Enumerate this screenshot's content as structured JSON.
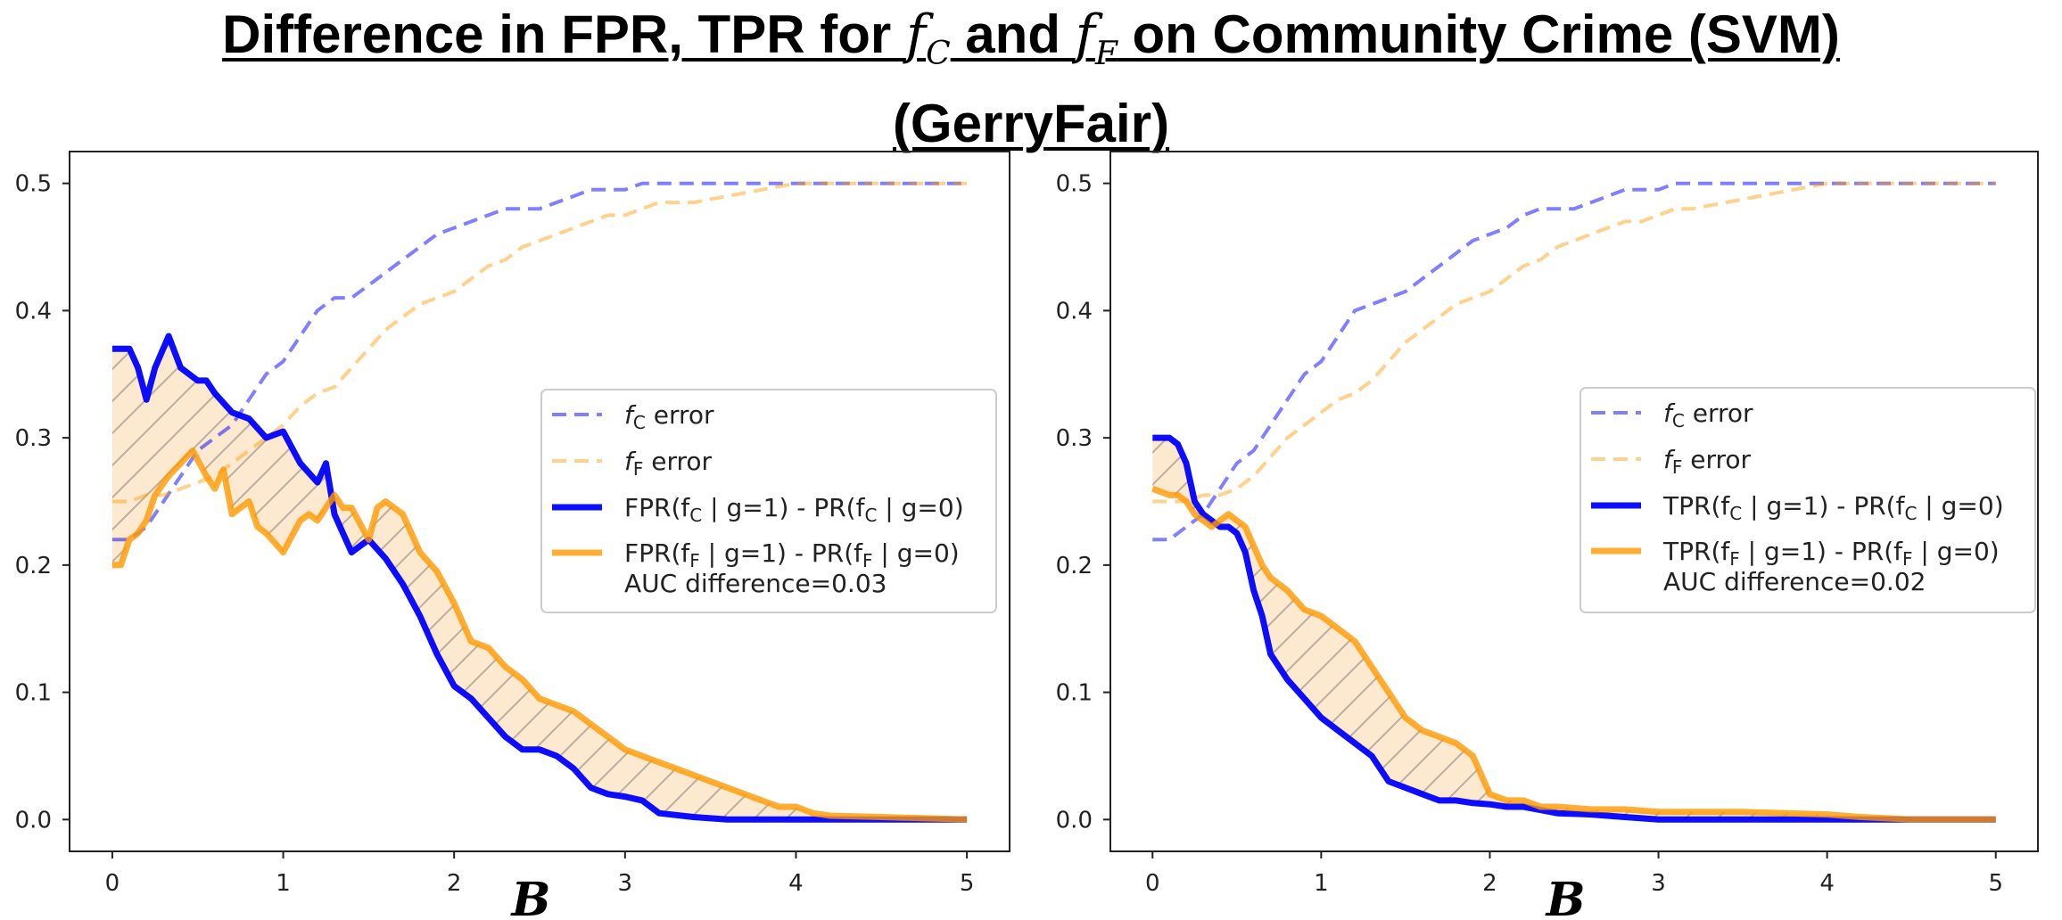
{
  "title": {
    "line1_part1": "Difference in FPR, TPR for ",
    "fc_italic": "f",
    "fc_sub": "C",
    "line1_part2": " and ",
    "ff_italic": "f",
    "ff_sub": "F",
    "line1_part3": " on Community Crime (SVM)",
    "line2": "(GerryFair)"
  },
  "chart_data": [
    {
      "type": "line",
      "panel": "left",
      "xlabel": "B",
      "xlim": [
        -0.25,
        5.25
      ],
      "ylim": [
        -0.025,
        0.525
      ],
      "xticks": [
        "0",
        "1",
        "2",
        "3",
        "4",
        "5"
      ],
      "yticks": [
        "0.0",
        "0.1",
        "0.2",
        "0.3",
        "0.4",
        "0.5"
      ],
      "legend_position": "center-right",
      "colors": {
        "fc": "#0000ff",
        "ff": "#ff9900"
      },
      "legend": [
        {
          "key": "fc_error",
          "name": "f_C error",
          "label_pre": "f",
          "label_sub": "C",
          "label_post": " error"
        },
        {
          "key": "ff_error",
          "name": "f_F error",
          "label_pre": "f",
          "label_sub": "F",
          "label_post": " error"
        },
        {
          "key": "fc_diff",
          "name": "FPR(f_C | g=1) - PR(f_C | g=0)",
          "label_pre": "FPR(f",
          "label_sub": "C",
          "label_post": " | g=1) - PR(f",
          "label_sub2": "C",
          "label_post2": " | g=0)"
        },
        {
          "key": "ff_diff",
          "name": "FPR(f_F | g=1) - PR(f_F | g=0)",
          "label_pre": "FPR(f",
          "label_sub": "F",
          "label_post": " | g=1) - PR(f",
          "label_sub2": "F",
          "label_post2": " | g=0)",
          "extra": "AUC difference=0.03"
        }
      ],
      "series": [
        {
          "key": "fc_error",
          "name": "f_C error",
          "x": [
            0,
            0.1,
            0.2,
            0.3,
            0.4,
            0.5,
            0.6,
            0.7,
            0.8,
            0.9,
            1.0,
            1.1,
            1.2,
            1.3,
            1.4,
            1.5,
            1.6,
            1.7,
            1.8,
            1.9,
            2.0,
            2.1,
            2.2,
            2.3,
            2.4,
            2.5,
            2.6,
            2.7,
            2.8,
            2.9,
            3.0,
            3.1,
            3.2,
            3.4,
            3.6,
            3.8,
            4.0,
            4.5,
            5.0
          ],
          "y": [
            0.22,
            0.22,
            0.23,
            0.25,
            0.27,
            0.29,
            0.3,
            0.31,
            0.33,
            0.35,
            0.36,
            0.38,
            0.4,
            0.41,
            0.41,
            0.42,
            0.43,
            0.44,
            0.45,
            0.46,
            0.465,
            0.47,
            0.475,
            0.48,
            0.48,
            0.48,
            0.485,
            0.49,
            0.495,
            0.495,
            0.495,
            0.5,
            0.5,
            0.5,
            0.5,
            0.5,
            0.5,
            0.5,
            0.5
          ]
        },
        {
          "key": "ff_error",
          "name": "f_F error",
          "x": [
            0,
            0.1,
            0.2,
            0.3,
            0.4,
            0.5,
            0.6,
            0.7,
            0.8,
            0.9,
            1.0,
            1.1,
            1.2,
            1.3,
            1.4,
            1.5,
            1.6,
            1.7,
            1.8,
            1.9,
            2.0,
            2.1,
            2.2,
            2.3,
            2.4,
            2.5,
            2.6,
            2.7,
            2.8,
            2.9,
            3.0,
            3.1,
            3.2,
            3.4,
            3.6,
            3.8,
            4.0,
            4.5,
            5.0
          ],
          "y": [
            0.25,
            0.25,
            0.255,
            0.255,
            0.26,
            0.265,
            0.27,
            0.28,
            0.29,
            0.3,
            0.31,
            0.325,
            0.335,
            0.34,
            0.355,
            0.37,
            0.385,
            0.395,
            0.405,
            0.41,
            0.415,
            0.425,
            0.435,
            0.44,
            0.45,
            0.455,
            0.46,
            0.465,
            0.47,
            0.475,
            0.475,
            0.48,
            0.485,
            0.485,
            0.49,
            0.495,
            0.5,
            0.5,
            0.5
          ]
        },
        {
          "key": "fc_diff",
          "name": "FPR(f_C | g=1) - PR(f_C | g=0)",
          "x": [
            0,
            0.05,
            0.1,
            0.15,
            0.2,
            0.25,
            0.33,
            0.4,
            0.5,
            0.55,
            0.6,
            0.7,
            0.8,
            0.9,
            1.0,
            1.1,
            1.2,
            1.25,
            1.3,
            1.4,
            1.5,
            1.6,
            1.7,
            1.8,
            1.9,
            2.0,
            2.1,
            2.2,
            2.3,
            2.4,
            2.5,
            2.6,
            2.7,
            2.8,
            2.9,
            3.0,
            3.1,
            3.2,
            3.4,
            3.6,
            3.8,
            4.0,
            4.5,
            5.0
          ],
          "y": [
            0.37,
            0.37,
            0.37,
            0.355,
            0.33,
            0.355,
            0.38,
            0.355,
            0.345,
            0.345,
            0.335,
            0.32,
            0.315,
            0.3,
            0.305,
            0.28,
            0.265,
            0.28,
            0.24,
            0.21,
            0.22,
            0.205,
            0.185,
            0.16,
            0.13,
            0.105,
            0.095,
            0.08,
            0.065,
            0.055,
            0.055,
            0.05,
            0.04,
            0.025,
            0.02,
            0.018,
            0.015,
            0.005,
            0.002,
            0.0,
            0.0,
            0.0,
            0.0,
            0.0
          ]
        },
        {
          "key": "ff_diff",
          "name": "FPR(f_F | g=1) - PR(f_F | g=0)",
          "x": [
            0,
            0.05,
            0.1,
            0.15,
            0.2,
            0.25,
            0.33,
            0.4,
            0.47,
            0.55,
            0.6,
            0.65,
            0.7,
            0.75,
            0.8,
            0.85,
            0.9,
            1.0,
            1.1,
            1.15,
            1.2,
            1.25,
            1.3,
            1.35,
            1.4,
            1.5,
            1.55,
            1.6,
            1.7,
            1.75,
            1.8,
            1.9,
            2.0,
            2.1,
            2.2,
            2.3,
            2.4,
            2.5,
            2.6,
            2.7,
            2.8,
            2.9,
            3.0,
            3.1,
            3.2,
            3.3,
            3.4,
            3.5,
            3.6,
            3.7,
            3.8,
            3.9,
            4.0,
            4.1,
            4.2,
            4.5,
            5.0
          ],
          "y": [
            0.2,
            0.2,
            0.22,
            0.225,
            0.235,
            0.255,
            0.27,
            0.28,
            0.29,
            0.27,
            0.26,
            0.275,
            0.24,
            0.245,
            0.25,
            0.23,
            0.225,
            0.21,
            0.235,
            0.24,
            0.235,
            0.245,
            0.255,
            0.245,
            0.245,
            0.22,
            0.245,
            0.25,
            0.24,
            0.225,
            0.21,
            0.195,
            0.17,
            0.14,
            0.135,
            0.12,
            0.11,
            0.095,
            0.09,
            0.085,
            0.075,
            0.065,
            0.055,
            0.05,
            0.045,
            0.04,
            0.035,
            0.03,
            0.025,
            0.02,
            0.015,
            0.01,
            0.01,
            0.005,
            0.003,
            0.002,
            0.0
          ]
        }
      ]
    },
    {
      "type": "line",
      "panel": "right",
      "xlabel": "B",
      "xlim": [
        -0.25,
        5.25
      ],
      "ylim": [
        -0.025,
        0.525
      ],
      "xticks": [
        "0",
        "1",
        "2",
        "3",
        "4",
        "5"
      ],
      "yticks": [
        "0.0",
        "0.1",
        "0.2",
        "0.3",
        "0.4",
        "0.5"
      ],
      "legend_position": "center-right",
      "colors": {
        "fc": "#0000ff",
        "ff": "#ff9900"
      },
      "legend": [
        {
          "key": "fc_error",
          "name": "f_C error",
          "label_pre": "f",
          "label_sub": "C",
          "label_post": " error"
        },
        {
          "key": "ff_error",
          "name": "f_F error",
          "label_pre": "f",
          "label_sub": "F",
          "label_post": " error"
        },
        {
          "key": "fc_diff",
          "name": "TPR(f_C | g=1) - PR(f_C | g=0)",
          "label_pre": "TPR(f",
          "label_sub": "C",
          "label_post": " | g=1) - PR(f",
          "label_sub2": "C",
          "label_post2": " | g=0)"
        },
        {
          "key": "ff_diff",
          "name": "TPR(f_F | g=1) - PR(f_F | g=0)",
          "label_pre": "TPR(f",
          "label_sub": "F",
          "label_post": " | g=1) - PR(f",
          "label_sub2": "F",
          "label_post2": " | g=0)",
          "extra": "AUC difference=0.02"
        }
      ],
      "series": [
        {
          "key": "fc_error",
          "name": "f_C error",
          "x": [
            0,
            0.1,
            0.2,
            0.3,
            0.4,
            0.5,
            0.6,
            0.7,
            0.8,
            0.9,
            1.0,
            1.1,
            1.2,
            1.3,
            1.4,
            1.5,
            1.6,
            1.7,
            1.8,
            1.9,
            2.0,
            2.1,
            2.2,
            2.3,
            2.4,
            2.5,
            2.6,
            2.7,
            2.8,
            2.9,
            3.0,
            3.1,
            3.2,
            3.4,
            3.6,
            3.8,
            4.0,
            4.5,
            5.0
          ],
          "y": [
            0.22,
            0.22,
            0.23,
            0.24,
            0.26,
            0.28,
            0.29,
            0.31,
            0.33,
            0.35,
            0.36,
            0.38,
            0.4,
            0.405,
            0.41,
            0.415,
            0.425,
            0.435,
            0.445,
            0.455,
            0.46,
            0.465,
            0.475,
            0.48,
            0.48,
            0.48,
            0.485,
            0.49,
            0.495,
            0.495,
            0.495,
            0.5,
            0.5,
            0.5,
            0.5,
            0.5,
            0.5,
            0.5,
            0.5
          ]
        },
        {
          "key": "ff_error",
          "name": "f_F error",
          "x": [
            0,
            0.1,
            0.2,
            0.3,
            0.4,
            0.5,
            0.6,
            0.7,
            0.8,
            0.9,
            1.0,
            1.1,
            1.2,
            1.3,
            1.4,
            1.5,
            1.6,
            1.7,
            1.8,
            1.9,
            2.0,
            2.1,
            2.2,
            2.3,
            2.4,
            2.5,
            2.6,
            2.7,
            2.8,
            2.9,
            3.0,
            3.1,
            3.2,
            3.4,
            3.6,
            3.8,
            4.0,
            4.5,
            5.0
          ],
          "y": [
            0.25,
            0.25,
            0.25,
            0.255,
            0.255,
            0.26,
            0.27,
            0.285,
            0.3,
            0.31,
            0.32,
            0.33,
            0.335,
            0.345,
            0.36,
            0.375,
            0.385,
            0.395,
            0.405,
            0.41,
            0.415,
            0.425,
            0.435,
            0.44,
            0.45,
            0.455,
            0.46,
            0.465,
            0.47,
            0.47,
            0.475,
            0.48,
            0.48,
            0.485,
            0.49,
            0.495,
            0.5,
            0.5,
            0.5
          ]
        },
        {
          "key": "fc_diff",
          "name": "TPR(f_C | g=1) - PR(f_C | g=0)",
          "x": [
            0,
            0.1,
            0.15,
            0.2,
            0.25,
            0.3,
            0.35,
            0.4,
            0.45,
            0.5,
            0.55,
            0.6,
            0.65,
            0.7,
            0.8,
            0.9,
            1.0,
            1.1,
            1.2,
            1.3,
            1.4,
            1.5,
            1.6,
            1.7,
            1.8,
            1.9,
            2.0,
            2.1,
            2.2,
            2.4,
            2.6,
            2.8,
            3.0,
            3.5,
            4.0,
            4.5,
            5.0
          ],
          "y": [
            0.3,
            0.3,
            0.295,
            0.28,
            0.25,
            0.24,
            0.235,
            0.23,
            0.23,
            0.225,
            0.21,
            0.18,
            0.16,
            0.13,
            0.11,
            0.095,
            0.08,
            0.07,
            0.06,
            0.05,
            0.03,
            0.025,
            0.02,
            0.015,
            0.015,
            0.013,
            0.012,
            0.01,
            0.01,
            0.005,
            0.004,
            0.002,
            0.0,
            0.0,
            0.0,
            0.0,
            0.0
          ]
        },
        {
          "key": "ff_diff",
          "name": "TPR(f_F | g=1) - PR(f_F | g=0)",
          "x": [
            0,
            0.1,
            0.15,
            0.2,
            0.25,
            0.3,
            0.35,
            0.4,
            0.45,
            0.5,
            0.55,
            0.6,
            0.65,
            0.7,
            0.8,
            0.9,
            1.0,
            1.1,
            1.2,
            1.3,
            1.4,
            1.5,
            1.6,
            1.7,
            1.8,
            1.9,
            2.0,
            2.1,
            2.2,
            2.3,
            2.4,
            2.6,
            2.8,
            3.0,
            3.5,
            4.0,
            4.2,
            4.5,
            5.0
          ],
          "y": [
            0.26,
            0.255,
            0.255,
            0.25,
            0.24,
            0.235,
            0.23,
            0.235,
            0.24,
            0.235,
            0.23,
            0.215,
            0.2,
            0.19,
            0.18,
            0.165,
            0.16,
            0.15,
            0.14,
            0.12,
            0.1,
            0.08,
            0.07,
            0.065,
            0.06,
            0.05,
            0.02,
            0.015,
            0.015,
            0.01,
            0.01,
            0.008,
            0.008,
            0.006,
            0.006,
            0.004,
            0.002,
            0.0,
            0.0
          ]
        }
      ]
    }
  ]
}
